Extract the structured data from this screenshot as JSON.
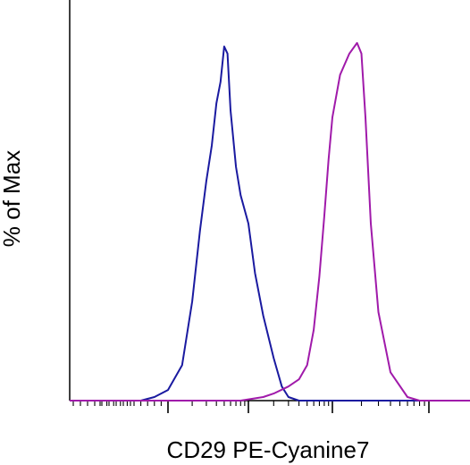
{
  "chart_data": {
    "type": "line",
    "title": "",
    "xlabel": "CD29 PE-Cyanine7",
    "ylabel": "% of Max",
    "x_scale": "log",
    "xlim": [
      -1000,
      100000
    ],
    "ylim": [
      0,
      100
    ],
    "grid": false,
    "legend": "none",
    "series": [
      {
        "color": "#1a1aa0",
        "x": [
          20,
          60,
          100,
          150,
          200,
          250,
          300,
          350,
          400,
          450,
          500,
          550,
          600,
          700,
          800,
          1000,
          1200,
          1500,
          2000,
          2500,
          3000,
          4000
        ],
        "y": [
          0,
          1,
          3,
          10,
          28,
          48,
          62,
          72,
          84,
          90,
          100,
          98,
          82,
          66,
          58,
          50,
          36,
          24,
          12,
          4,
          1,
          0
        ]
      },
      {
        "color": "#a01aaa",
        "x": [
          800,
          1500,
          2000,
          3000,
          4000,
          5000,
          6000,
          7000,
          8000,
          9000,
          10000,
          12000,
          15000,
          18000,
          20000,
          22000,
          25000,
          30000,
          40000,
          60000,
          80000
        ],
        "y": [
          0,
          1,
          2,
          4,
          6,
          10,
          20,
          35,
          52,
          68,
          80,
          92,
          98,
          101,
          98,
          80,
          50,
          25,
          8,
          1,
          0
        ]
      }
    ]
  }
}
